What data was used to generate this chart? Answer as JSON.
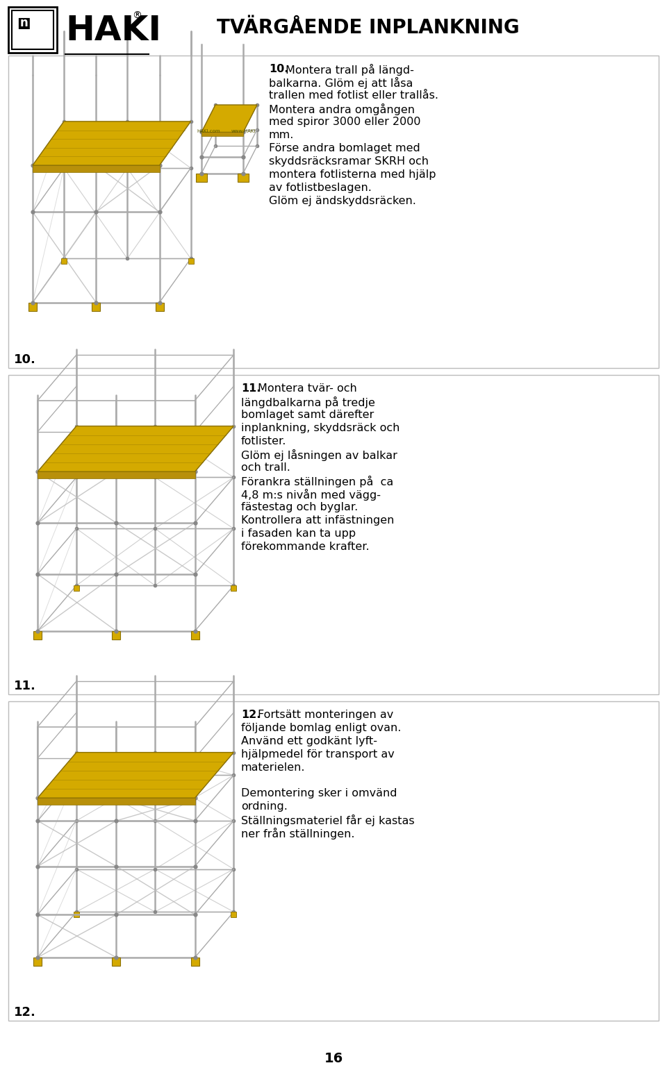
{
  "page_bg": "#ffffff",
  "header_title": "TVÄRGÅENDE INPLANKNING",
  "logo_text": "HAKI",
  "sections": [
    {
      "number": "10",
      "text_lines": [
        "Montera trall på längd-",
        "balkarna. Glöm ej att låsa",
        "trallen med fotlist eller trallås.",
        "Montera andra omgången",
        "med spiror 3000 eller 2000",
        "mm.",
        "Förse andra bomlaget med",
        "skyddsräcksramar SKRH och",
        "montera fotlisterna med hjälp",
        "av fotlistbeslagen.",
        "Glöm ej ändskyddsräcken."
      ]
    },
    {
      "number": "11",
      "text_lines": [
        "Montera tvär- och",
        "längdbalkarna på tredje",
        "bomlaget samt därefter",
        "inplankning, skyddsräck och",
        "fotlister.",
        "Glöm ej låsningen av balkar",
        "och trall.",
        "Förankra ställningen på  ca",
        "4,8 m:s nivån med vägg-",
        "fästestag och byglar.",
        "Kontrollera att infästningen",
        "i fasaden kan ta upp",
        "förekommande krafter."
      ]
    },
    {
      "number": "12",
      "text_lines": [
        "Fortsätt monteringen av",
        "följande bomlag enligt ovan.",
        "Använd ett godkänt lyft-",
        "hjälpmedel för transport av",
        "materielen.",
        "",
        "Demontering sker i omvänd",
        "ordning.",
        "Ställningsmateriel får ej kastas",
        "ner från ställningen."
      ]
    }
  ],
  "page_number": "16",
  "text_color": "#000000",
  "pole_color": "#aaaaaa",
  "joint_color": "#888888",
  "plank_color": "#D4AA00",
  "plank_edge_color": "#8B7000",
  "foot_color": "#D4AA00",
  "rail_color": "#aaaaaa",
  "brace_color": "#bbbbbb",
  "section_border_color": "#bbbbbb",
  "font_size_title": 20,
  "font_size_text": 11.5,
  "font_size_number": 13,
  "font_size_page": 14
}
